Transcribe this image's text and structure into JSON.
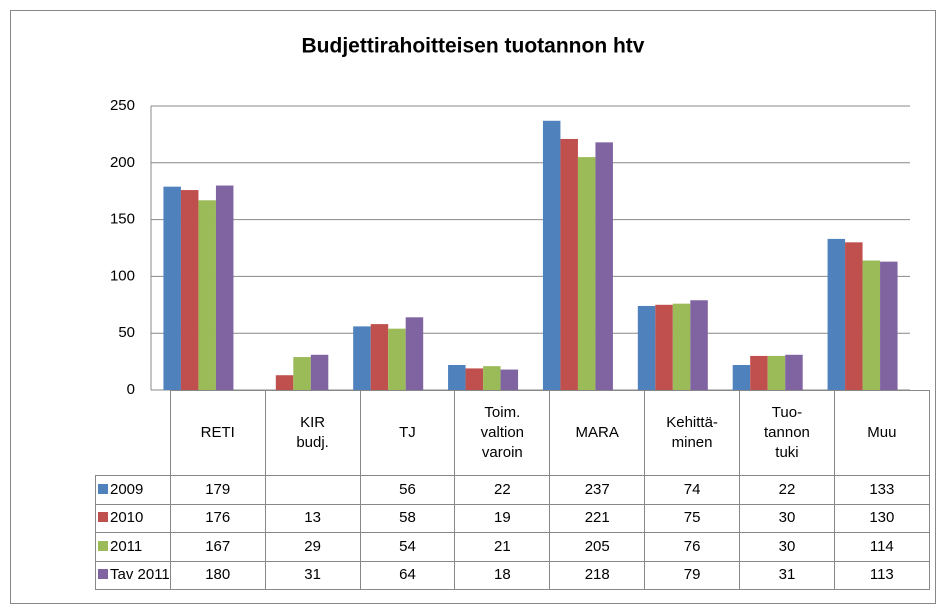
{
  "chart_data": {
    "type": "bar",
    "title": "Budjettirahoitteisen tuotannon  htv",
    "categories": [
      "RETI",
      "KIR\nbudj.",
      "TJ",
      "Toim.\nvaltion\nvaroin",
      "MARA",
      "Kehittä-\nminen",
      "Tuo-\ntannon\ntuki",
      "Muu"
    ],
    "series": [
      {
        "name": "2009",
        "color": "#4f81bd",
        "values": [
          179,
          null,
          56,
          22,
          237,
          74,
          22,
          133
        ]
      },
      {
        "name": "2010",
        "color": "#c0504d",
        "values": [
          176,
          13,
          58,
          19,
          221,
          75,
          30,
          130
        ]
      },
      {
        "name": "2011",
        "color": "#9bbb59",
        "values": [
          167,
          29,
          54,
          21,
          205,
          76,
          30,
          114
        ]
      },
      {
        "name": "Tav 2011",
        "color": "#8064a2",
        "values": [
          180,
          31,
          64,
          18,
          218,
          79,
          31,
          113
        ]
      }
    ],
    "ylim": [
      0,
      250
    ],
    "yticks": [
      0,
      50,
      100,
      150,
      200,
      250
    ],
    "grid": true,
    "data_table": true
  }
}
